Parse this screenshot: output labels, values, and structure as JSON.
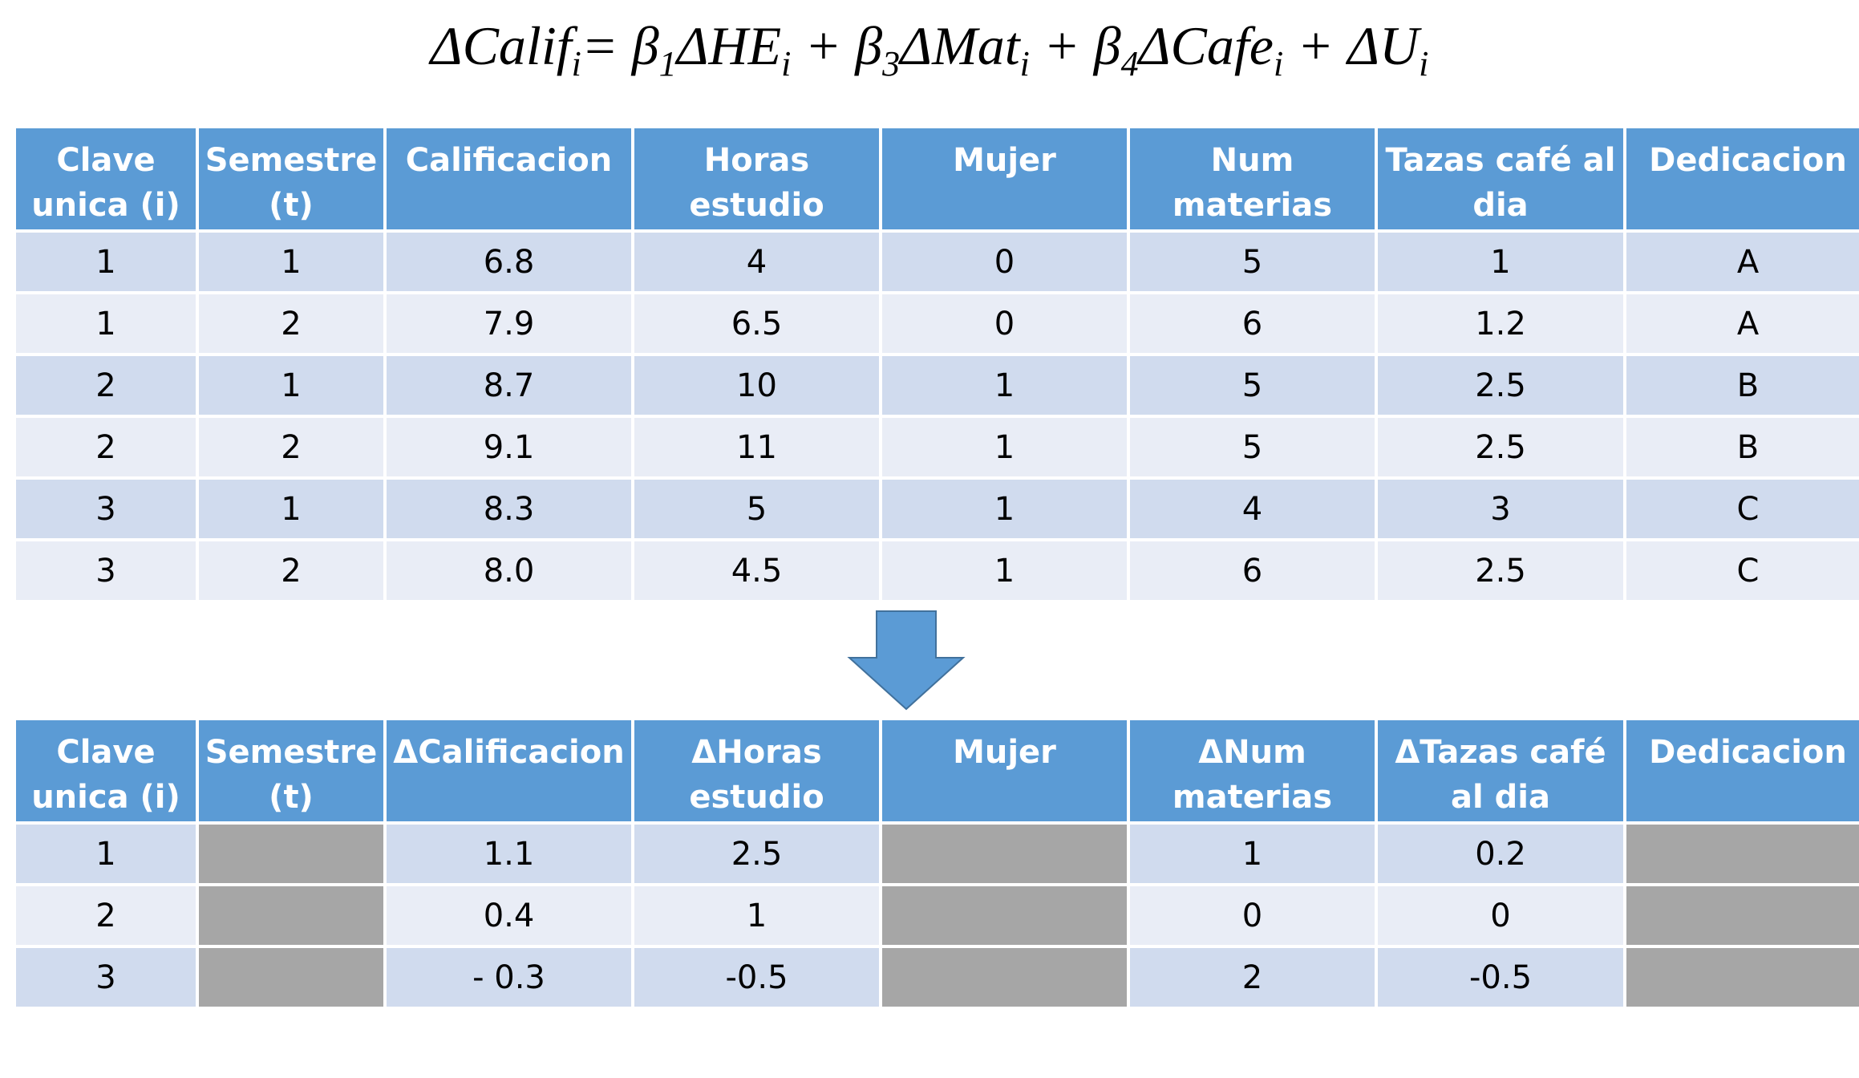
{
  "equation": [
    {
      "text": "ΔCalif",
      "sub": "i"
    },
    {
      "text": "= β",
      "sub": "1"
    },
    {
      "text": "ΔHE",
      "sub": "i"
    },
    {
      "text": " + β",
      "sub": "3"
    },
    {
      "text": "ΔMat",
      "sub": "i"
    },
    {
      "text": " + β",
      "sub": "4"
    },
    {
      "text": "ΔCafe",
      "sub": "i"
    },
    {
      "text": " + ΔU",
      "sub": "i"
    }
  ],
  "table1": {
    "header": [
      "Clave unica (i)",
      "Semestre (t)",
      "Calificacion",
      "Horas estudio",
      "Mujer",
      "Num materias",
      "Tazas café al dia",
      "Dedicacion"
    ],
    "rows": [
      [
        "1",
        "1",
        "6.8",
        "4",
        "0",
        "5",
        "1",
        "A"
      ],
      [
        "1",
        "2",
        "7.9",
        "6.5",
        "0",
        "6",
        "1.2",
        "A"
      ],
      [
        "2",
        "1",
        "8.7",
        "10",
        "1",
        "5",
        "2.5",
        "B"
      ],
      [
        "2",
        "2",
        "9.1",
        "11",
        "1",
        "5",
        "2.5",
        "B"
      ],
      [
        "3",
        "1",
        "8.3",
        "5",
        "1",
        "4",
        "3",
        "C"
      ],
      [
        "3",
        "2",
        "8.0",
        "4.5",
        "1",
        "6",
        "2.5",
        "C"
      ]
    ]
  },
  "table2": {
    "header": [
      "Clave unica (i)",
      "Semestre (t)",
      "ΔCalificacion",
      "ΔHoras estudio",
      "Mujer",
      "ΔNum materias",
      "ΔTazas café al dia",
      "Dedicacion"
    ],
    "rows": [
      [
        "1",
        null,
        "1.1",
        "2.5",
        null,
        "1",
        "0.2",
        null
      ],
      [
        "2",
        null,
        "0.4",
        "1",
        null,
        "0",
        "0",
        null
      ],
      [
        "3",
        null,
        "- 0.3",
        "-0.5",
        null,
        "2",
        "-0.5",
        null
      ]
    ]
  }
}
